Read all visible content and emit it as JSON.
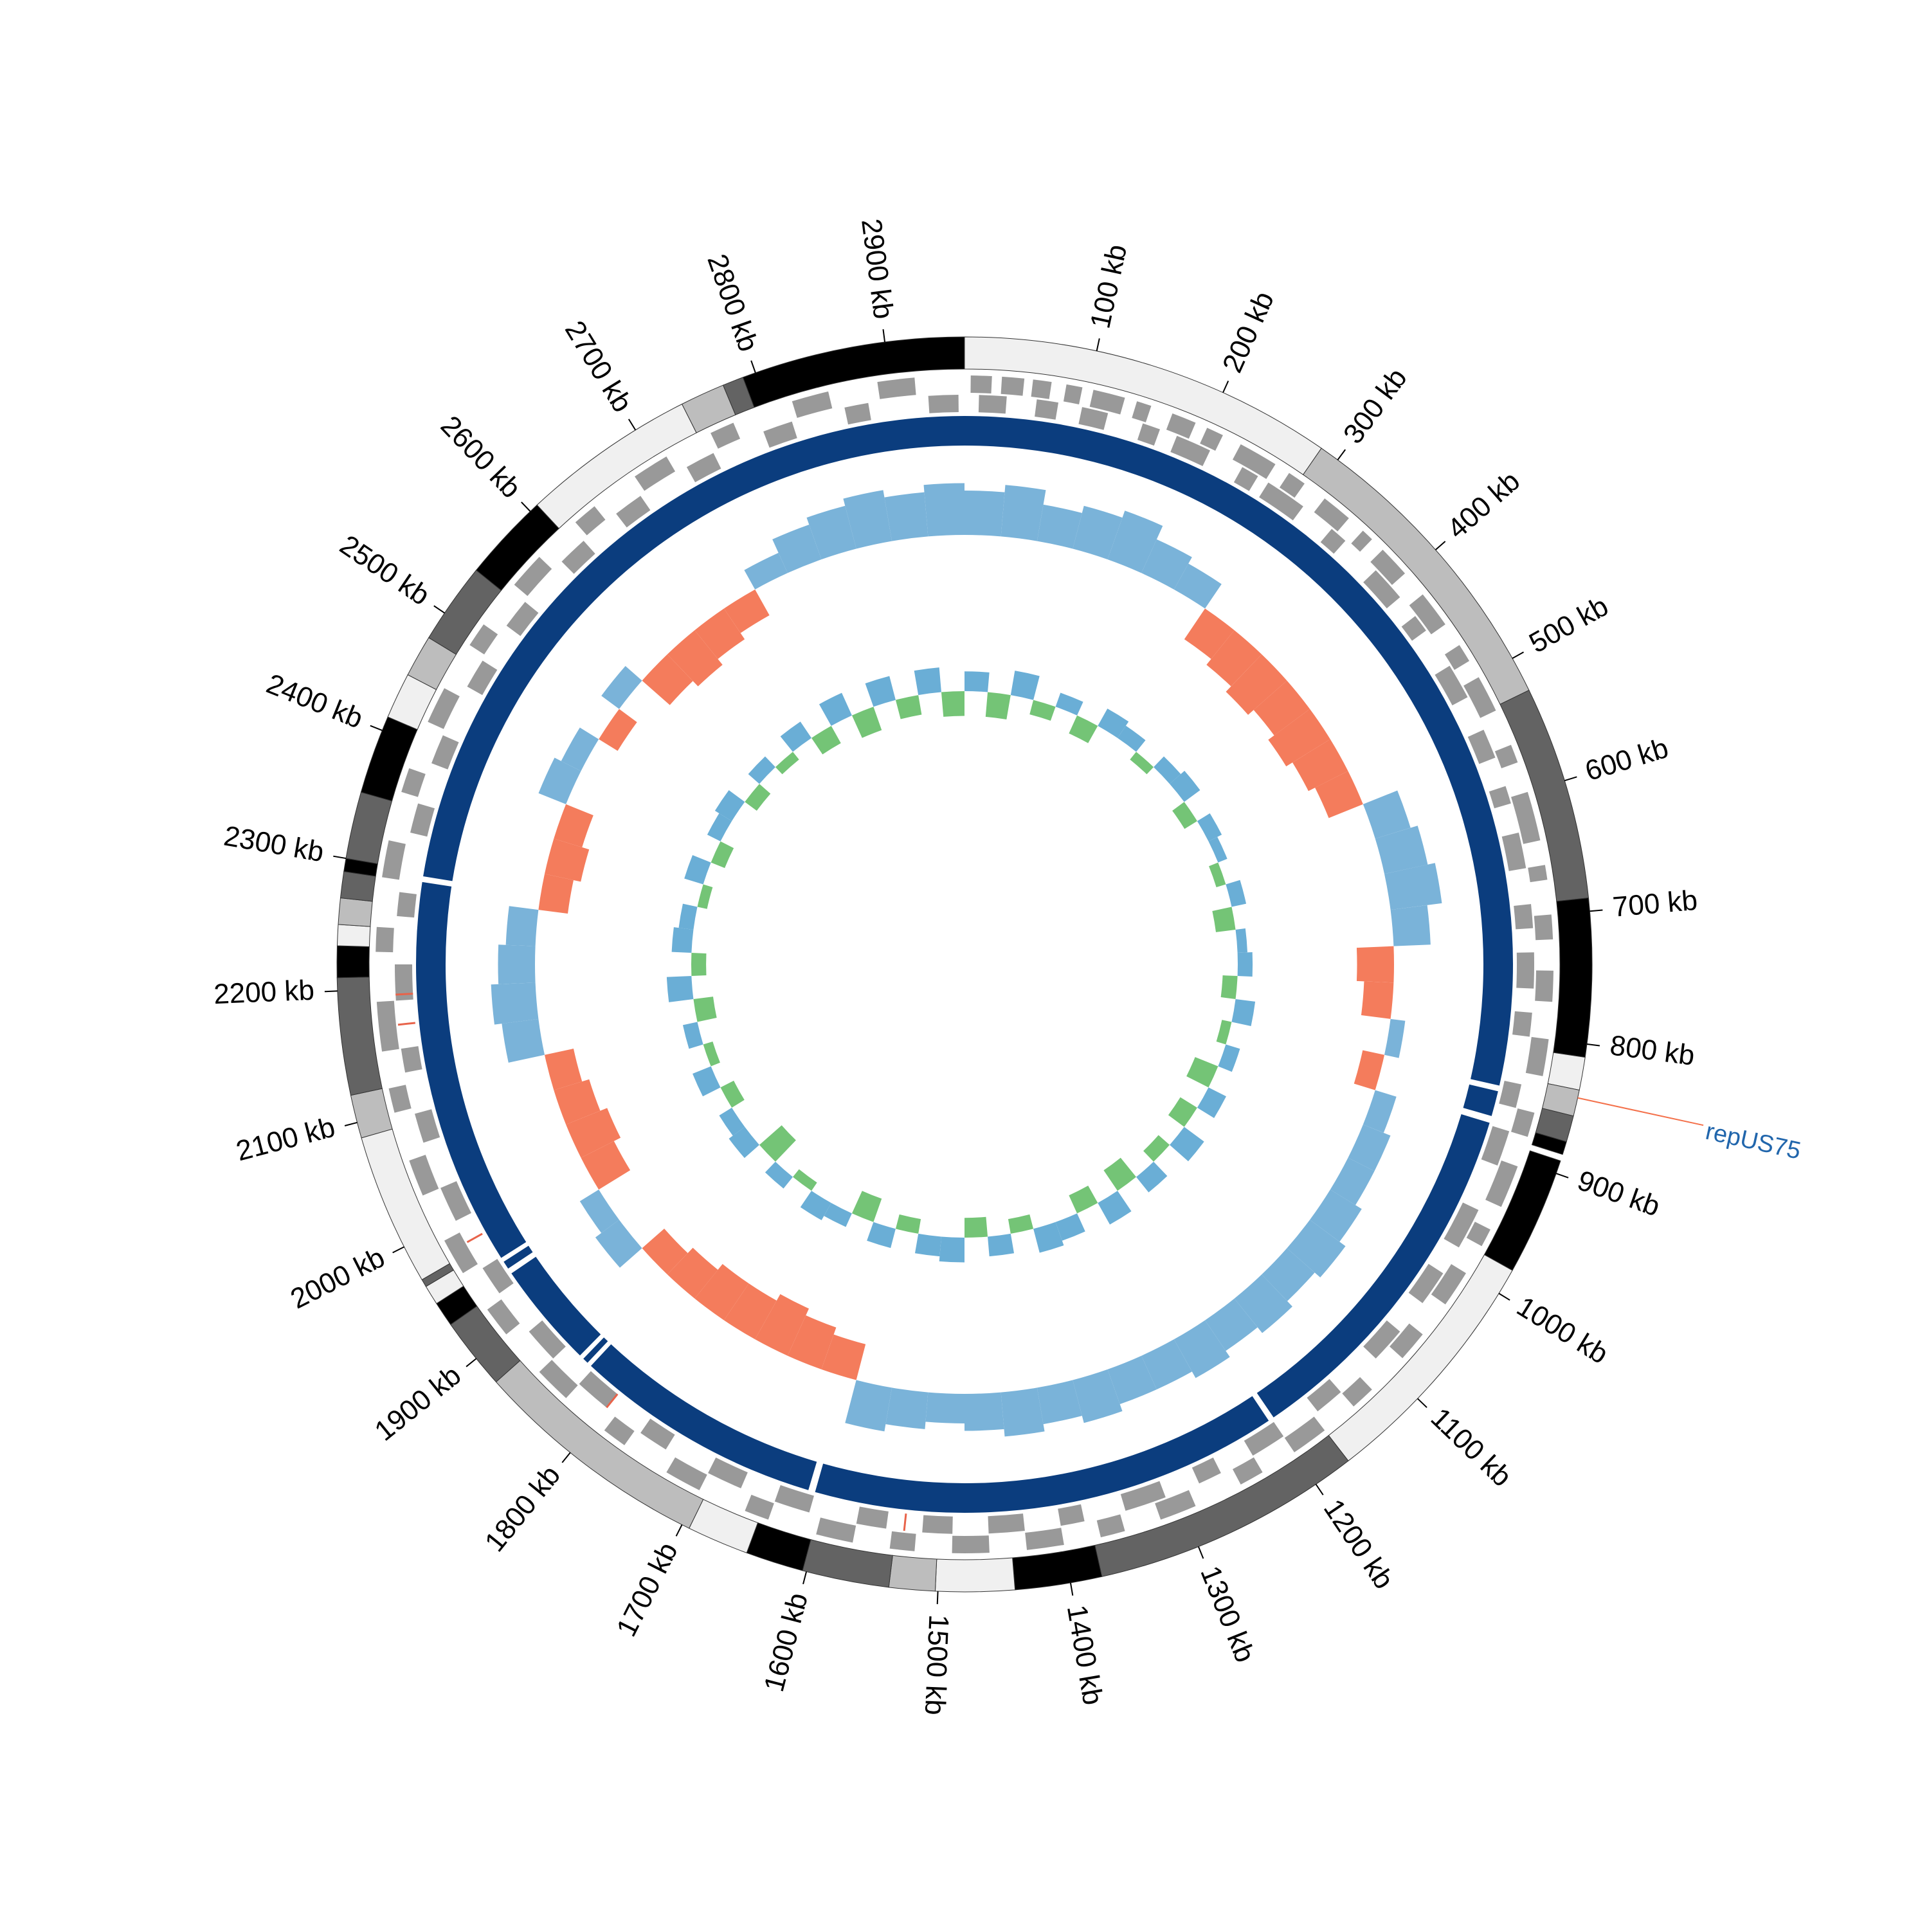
{
  "chart_data": {
    "type": "circos",
    "xlim": [
      0,
      2960
    ],
    "xticks": [
      {
        "value": 100,
        "label": "100 kb"
      },
      {
        "value": 200,
        "label": "200 kb"
      },
      {
        "value": 300,
        "label": "300 kb"
      },
      {
        "value": 400,
        "label": "400 kb"
      },
      {
        "value": 500,
        "label": "500 kb"
      },
      {
        "value": 600,
        "label": "600 kb"
      },
      {
        "value": 700,
        "label": "700 kb"
      },
      {
        "value": 800,
        "label": "800 kb"
      },
      {
        "value": 900,
        "label": "900 kb"
      },
      {
        "value": 1000,
        "label": "1000 kb"
      },
      {
        "value": 1100,
        "label": "1100 kb"
      },
      {
        "value": 1200,
        "label": "1200 kb"
      },
      {
        "value": 1300,
        "label": "1300 kb"
      },
      {
        "value": 1400,
        "label": "1400 kb"
      },
      {
        "value": 1500,
        "label": "1500 kb"
      },
      {
        "value": 1600,
        "label": "1600 kb"
      },
      {
        "value": 1700,
        "label": "1700 kb"
      },
      {
        "value": 1800,
        "label": "1800 kb"
      },
      {
        "value": 1900,
        "label": "1900 kb"
      },
      {
        "value": 2000,
        "label": "2000 kb"
      },
      {
        "value": 2100,
        "label": "2100 kb"
      },
      {
        "value": 2200,
        "label": "2200 kb"
      },
      {
        "value": 2300,
        "label": "2300 kb"
      },
      {
        "value": 2400,
        "label": "2400 kb"
      },
      {
        "value": 2500,
        "label": "2500 kb"
      },
      {
        "value": 2600,
        "label": "2600 kb"
      },
      {
        "value": 2700,
        "label": "2700 kb"
      },
      {
        "value": 2800,
        "label": "2800 kb"
      },
      {
        "value": 2900,
        "label": "2900 kb"
      }
    ],
    "contigs": [
      {
        "start": 0,
        "end": 285,
        "color": "#f0f0f0"
      },
      {
        "start": 285,
        "end": 527,
        "color": "#bdbdbd"
      },
      {
        "start": 527,
        "end": 690,
        "color": "#636363"
      },
      {
        "start": 690,
        "end": 810,
        "color": "#000000"
      },
      {
        "start": 810,
        "end": 835,
        "color": "#f0f0f0"
      },
      {
        "start": 835,
        "end": 855,
        "color": "#bdbdbd"
      },
      {
        "start": 855,
        "end": 875,
        "color": "#636363"
      },
      {
        "start": 875,
        "end": 885,
        "color": "#000000"
      },
      {
        "start": 890,
        "end": 980,
        "color": "#000000"
      },
      {
        "start": 980,
        "end": 1170,
        "color": "#f0f0f0"
      },
      {
        "start": 1170,
        "end": 1376,
        "color": "#636363"
      },
      {
        "start": 1376,
        "end": 1442,
        "color": "#000000"
      },
      {
        "start": 1442,
        "end": 1502,
        "color": "#f0f0f0"
      },
      {
        "start": 1502,
        "end": 1537,
        "color": "#bdbdbd"
      },
      {
        "start": 1537,
        "end": 1603,
        "color": "#636363"
      },
      {
        "start": 1603,
        "end": 1647,
        "color": "#000000"
      },
      {
        "start": 1647,
        "end": 1694,
        "color": "#f0f0f0"
      },
      {
        "start": 1694,
        "end": 1877,
        "color": "#bdbdbd"
      },
      {
        "start": 1877,
        "end": 1932,
        "color": "#636363"
      },
      {
        "start": 1932,
        "end": 1951,
        "color": "#000000"
      },
      {
        "start": 1951,
        "end": 1966,
        "color": "#f0f0f0"
      },
      {
        "start": 1966,
        "end": 1972,
        "color": "#636363"
      },
      {
        "start": 1972,
        "end": 2088,
        "color": "#f0f0f0"
      },
      {
        "start": 2088,
        "end": 2121,
        "color": "#bdbdbd"
      },
      {
        "start": 2121,
        "end": 2210,
        "color": "#636363"
      },
      {
        "start": 2210,
        "end": 2234,
        "color": "#000000"
      },
      {
        "start": 2234,
        "end": 2250,
        "color": "#f0f0f0"
      },
      {
        "start": 2250,
        "end": 2270,
        "color": "#bdbdbd"
      },
      {
        "start": 2270,
        "end": 2290,
        "color": "#636363"
      },
      {
        "start": 2290,
        "end": 2300,
        "color": "#000000"
      },
      {
        "start": 2300,
        "end": 2351,
        "color": "#636363"
      },
      {
        "start": 2351,
        "end": 2411,
        "color": "#000000"
      },
      {
        "start": 2411,
        "end": 2446,
        "color": "#f0f0f0"
      },
      {
        "start": 2446,
        "end": 2478,
        "color": "#bdbdbd"
      },
      {
        "start": 2478,
        "end": 2540,
        "color": "#636363"
      },
      {
        "start": 2540,
        "end": 2607,
        "color": "#000000"
      },
      {
        "start": 2607,
        "end": 2740,
        "color": "#f0f0f0"
      },
      {
        "start": 2740,
        "end": 2774,
        "color": "#bdbdbd"
      },
      {
        "start": 2774,
        "end": 2790,
        "color": "#636363"
      },
      {
        "start": 2790,
        "end": 2960,
        "color": "#000000"
      }
    ],
    "genes": {
      "color": "#999999",
      "forward": [
        [
          5,
          22
        ],
        [
          30,
          48
        ],
        [
          55,
          70
        ],
        [
          82,
          95
        ],
        [
          104,
          130
        ],
        [
          140,
          152
        ],
        [
          170,
          190
        ],
        [
          200,
          214
        ],
        [
          230,
          262
        ],
        [
          275,
          290
        ],
        [
          310,
          335
        ],
        [
          350,
          360
        ],
        [
          372,
          398
        ],
        [
          420,
          450
        ],
        [
          470,
          485
        ],
        [
          500,
          530
        ],
        [
          560,
          575
        ],
        [
          600,
          640
        ],
        [
          660,
          672
        ],
        [
          700,
          720
        ],
        [
          745,
          770
        ],
        [
          800,
          830
        ],
        [
          860,
          880
        ],
        [
          905,
          940
        ],
        [
          960,
          975
        ],
        [
          1000,
          1030
        ],
        [
          1060,
          1085
        ],
        [
          1120,
          1140
        ],
        [
          1170,
          1200
        ],
        [
          1230,
          1250
        ],
        [
          1290,
          1320
        ],
        [
          1350,
          1370
        ],
        [
          1400,
          1430
        ],
        [
          1460,
          1490
        ],
        [
          1520,
          1540
        ],
        [
          1570,
          1600
        ],
        [
          1640,
          1660
        ],
        [
          1700,
          1730
        ],
        [
          1770,
          1790
        ],
        [
          1830,
          1860
        ],
        [
          1900,
          1925
        ],
        [
          1960,
          1990
        ],
        [
          2030,
          2060
        ],
        [
          2100,
          2120
        ],
        [
          2150,
          2190
        ],
        [
          2230,
          2250
        ],
        [
          2290,
          2320
        ],
        [
          2360,
          2380
        ],
        [
          2420,
          2450
        ],
        [
          2490,
          2510
        ],
        [
          2550,
          2580
        ],
        [
          2620,
          2640
        ],
        [
          2680,
          2710
        ],
        [
          2750,
          2770
        ],
        [
          2820,
          2850
        ],
        [
          2890,
          2920
        ]
      ],
      "reverse": [
        [
          12,
          35
        ],
        [
          60,
          78
        ],
        [
          98,
          120
        ],
        [
          150,
          165
        ],
        [
          180,
          210
        ],
        [
          240,
          255
        ],
        [
          265,
          300
        ],
        [
          330,
          345
        ],
        [
          380,
          410
        ],
        [
          430,
          445
        ],
        [
          480,
          510
        ],
        [
          540,
          565
        ],
        [
          590,
          605
        ],
        [
          630,
          660
        ],
        [
          690,
          710
        ],
        [
          730,
          760
        ],
        [
          780,
          800
        ],
        [
          840,
          860
        ],
        [
          880,
          910
        ],
        [
          950,
          985
        ],
        [
          1010,
          1040
        ],
        [
          1070,
          1100
        ],
        [
          1140,
          1165
        ],
        [
          1200,
          1230
        ],
        [
          1260,
          1280
        ],
        [
          1310,
          1345
        ],
        [
          1380,
          1400
        ],
        [
          1430,
          1460
        ],
        [
          1490,
          1515
        ],
        [
          1545,
          1570
        ],
        [
          1610,
          1640
        ],
        [
          1670,
          1700
        ],
        [
          1740,
          1765
        ],
        [
          1800,
          1830
        ],
        [
          1860,
          1890
        ],
        [
          1930,
          1955
        ],
        [
          2000,
          2030
        ],
        [
          2070,
          2095
        ],
        [
          2130,
          2150
        ],
        [
          2190,
          2220
        ],
        [
          2260,
          2280
        ],
        [
          2330,
          2355
        ],
        [
          2390,
          2415
        ],
        [
          2460,
          2485
        ],
        [
          2520,
          2545
        ],
        [
          2590,
          2615
        ],
        [
          2650,
          2675
        ],
        [
          2720,
          2745
        ],
        [
          2790,
          2815
        ],
        [
          2860,
          2880
        ],
        [
          2930,
          2955
        ]
      ]
    },
    "rna": {
      "color": "#e8634a",
      "positions": [
        1530,
        1800,
        1980,
        2170,
        2195
      ]
    },
    "blocks": {
      "color": "#0b3d7e",
      "segments": [
        [
          0,
          845
        ],
        [
          850,
          872
        ],
        [
          878,
          1198
        ],
        [
          1203,
          1610
        ],
        [
          1616,
          1833
        ],
        [
          1837,
          1842
        ],
        [
          1846,
          1938
        ],
        [
          1943,
          1950
        ],
        [
          1954,
          2291
        ],
        [
          2296,
          2960
        ]
      ]
    },
    "gc_skew": {
      "window": 40,
      "ylim": [
        -0.1,
        0.1
      ],
      "colors": [
        "#7ab3d9",
        "#f47c5c"
      ],
      "values": [
        0.06,
        0.07,
        0.05,
        0.06,
        0.07,
        0.05,
        0.04,
        -0.05,
        -0.06,
        -0.07,
        -0.06,
        -0.07,
        -0.06,
        -0.05,
        0.05,
        0.06,
        0.07,
        0.05,
        -0.05,
        -0.04,
        0.02,
        -0.03,
        0.03,
        0.04,
        0.04,
        0.05,
        0.06,
        0.05,
        0.06,
        0.05,
        0.06,
        0.05,
        0.05,
        0.06,
        0.05,
        0.06,
        0.05,
        0.04,
        0.05,
        0.06,
        -0.05,
        -0.06,
        -0.07,
        -0.06,
        -0.06,
        -0.05,
        -0.04,
        0.04,
        0.03,
        -0.05,
        -0.06,
        -0.05,
        -0.04,
        0.05,
        0.06,
        0.05,
        0.04,
        -0.04,
        -0.05,
        -0.04,
        0.04,
        0.03,
        -0.03,
        0.03,
        -0.05,
        -0.06,
        -0.05,
        -0.04,
        0.03,
        0.05,
        0.06,
        0.07,
        0.06,
        0.07
      ]
    },
    "gc_content": {
      "window": 40,
      "ylim": [
        -0.1,
        0.1
      ],
      "colors": [
        "#6aaed6",
        "#74c476"
      ],
      "values": [
        0.04,
        -0.05,
        0.05,
        -0.03,
        0.03,
        -0.04,
        0.04,
        0.03,
        -0.02,
        0.03,
        0.04,
        -0.03,
        0.03,
        0.02,
        -0.02,
        0.03,
        -0.04,
        0.02,
        0.03,
        -0.03,
        0.04,
        -0.02,
        0.03,
        -0.05,
        0.04,
        -0.04,
        0.05,
        -0.03,
        0.04,
        -0.05,
        0.05,
        -0.04,
        0.04,
        0.05,
        -0.03,
        0.04,
        -0.04,
        0.05,
        0.04,
        -0.03,
        0.04,
        -0.05,
        0.03,
        0.04,
        -0.02,
        0.03,
        -0.06,
        0.04,
        0.03,
        -0.03,
        0.04,
        -0.02,
        0.03,
        -0.04,
        0.05,
        -0.03,
        0.04,
        0.03,
        -0.02,
        0.04,
        -0.03,
        0.03,
        0.04,
        -0.03,
        0.03,
        -0.02,
        0.04,
        -0.04,
        0.05,
        -0.05,
        0.05,
        -0.04,
        0.05,
        -0.05
      ]
    },
    "annotations": [
      {
        "position": 841,
        "label": "repUS75",
        "line_color": "#f4704a",
        "text_color": "#2166ac"
      }
    ]
  }
}
